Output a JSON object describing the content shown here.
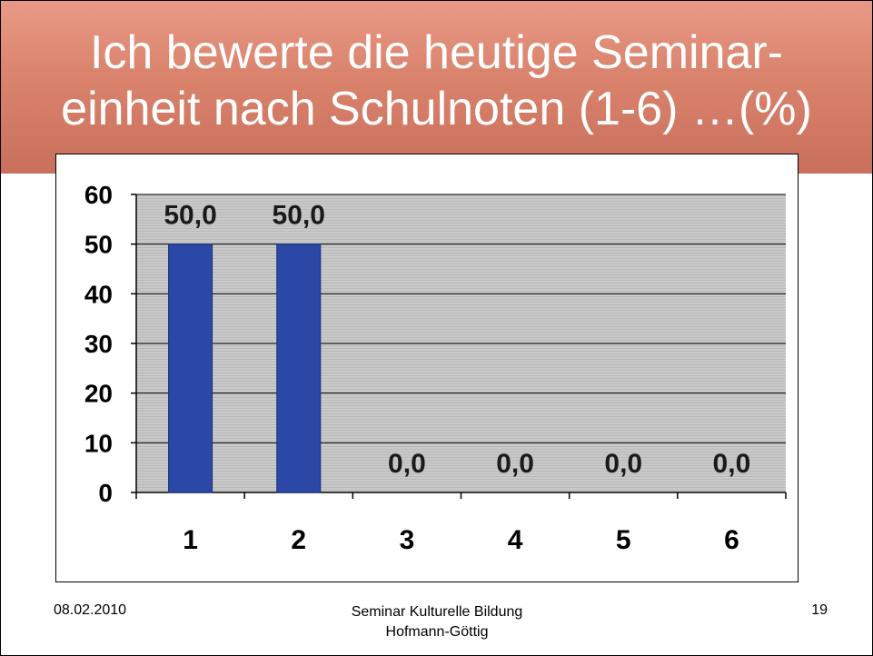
{
  "slide": {
    "title": "Ich bewerte die heutige Seminar-\neinheit nach Schulnoten (1-6) …(%)"
  },
  "footer": {
    "date": "08.02.2010",
    "center_line1": "Seminar Kulturelle Bildung",
    "center_line2": "Hofmann-Göttig",
    "page": "19"
  },
  "chart_data": {
    "type": "bar",
    "categories": [
      "1",
      "2",
      "3",
      "4",
      "5",
      "6"
    ],
    "values": [
      50.0,
      50.0,
      0.0,
      0.0,
      0.0,
      0.0
    ],
    "data_labels": [
      "50,0",
      "50,0",
      "0,0",
      "0,0",
      "0,0",
      "0,0"
    ],
    "ylim": [
      0,
      60
    ],
    "yticks": [
      0,
      10,
      20,
      30,
      40,
      50,
      60
    ],
    "grid": true,
    "legend": "none",
    "colors": {
      "bar": "#2b48a6",
      "plot_bg": "#c8c8c8"
    }
  }
}
